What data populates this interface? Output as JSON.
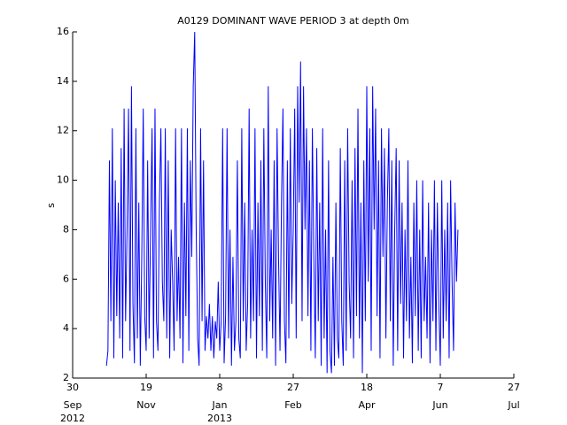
{
  "chart_data": {
    "type": "line",
    "title": "A0129 DOMINANT WAVE PERIOD 3 at depth 0m",
    "ylabel": "s",
    "color": "#0000ff",
    "ylim": [
      2,
      16
    ],
    "yticks": [
      2,
      4,
      6,
      8,
      10,
      12,
      14,
      16
    ],
    "xlim": [
      "2012-09-30",
      "2013-07-27"
    ],
    "xticks": [
      {
        "value": "2012-09-30",
        "label": "30"
      },
      {
        "value": "2012-11-19",
        "label": "19"
      },
      {
        "value": "2013-01-08",
        "label": "8"
      },
      {
        "value": "2013-02-27",
        "label": "27"
      },
      {
        "value": "2013-04-18",
        "label": "18"
      },
      {
        "value": "2013-06-07",
        "label": "7"
      },
      {
        "value": "2013-07-27",
        "label": "27"
      }
    ],
    "xtick_months": [
      "Sep",
      "Nov",
      "Jan",
      "Feb",
      "Apr",
      "Jun",
      "Jul"
    ],
    "xtick_years": [
      "2012",
      null,
      "2013",
      null,
      null,
      null,
      null
    ],
    "x": [
      "2012-10-23",
      "2012-10-24",
      "2012-10-25",
      "2012-10-26",
      "2012-10-27",
      "2012-10-28",
      "2012-10-29",
      "2012-10-30",
      "2012-10-31",
      "2012-11-01",
      "2012-11-02",
      "2012-11-03",
      "2012-11-04",
      "2012-11-05",
      "2012-11-06",
      "2012-11-07",
      "2012-11-08",
      "2012-11-09",
      "2012-11-10",
      "2012-11-11",
      "2012-11-12",
      "2012-11-13",
      "2012-11-14",
      "2012-11-15",
      "2012-11-16",
      "2012-11-17",
      "2012-11-18",
      "2012-11-19",
      "2012-11-20",
      "2012-11-21",
      "2012-11-22",
      "2012-11-23",
      "2012-11-24",
      "2012-11-25",
      "2012-11-26",
      "2012-11-27",
      "2012-11-28",
      "2012-11-29",
      "2012-11-30",
      "2012-12-01",
      "2012-12-02",
      "2012-12-03",
      "2012-12-04",
      "2012-12-05",
      "2012-12-06",
      "2012-12-07",
      "2012-12-08",
      "2012-12-09",
      "2012-12-10",
      "2012-12-11",
      "2012-12-12",
      "2012-12-13",
      "2012-12-14",
      "2012-12-15",
      "2012-12-16",
      "2012-12-17",
      "2012-12-18",
      "2012-12-19",
      "2012-12-20",
      "2012-12-21",
      "2012-12-22",
      "2012-12-23",
      "2012-12-24",
      "2012-12-25",
      "2012-12-26",
      "2012-12-27",
      "2012-12-28",
      "2012-12-29",
      "2012-12-30",
      "2012-12-31",
      "2013-01-01",
      "2013-01-02",
      "2013-01-03",
      "2013-01-04",
      "2013-01-05",
      "2013-01-06",
      "2013-01-07",
      "2013-01-08",
      "2013-01-09",
      "2013-01-10",
      "2013-01-11",
      "2013-01-12",
      "2013-01-13",
      "2013-01-14",
      "2013-01-15",
      "2013-01-16",
      "2013-01-17",
      "2013-01-18",
      "2013-01-19",
      "2013-01-20",
      "2013-01-21",
      "2013-01-22",
      "2013-01-23",
      "2013-01-24",
      "2013-01-25",
      "2013-01-26",
      "2013-01-27",
      "2013-01-28",
      "2013-01-29",
      "2013-01-30",
      "2013-01-31",
      "2013-02-01",
      "2013-02-02",
      "2013-02-03",
      "2013-02-04",
      "2013-02-05",
      "2013-02-06",
      "2013-02-07",
      "2013-02-08",
      "2013-02-09",
      "2013-02-10",
      "2013-02-11",
      "2013-02-12",
      "2013-02-13",
      "2013-02-14",
      "2013-02-15",
      "2013-02-16",
      "2013-02-17",
      "2013-02-18",
      "2013-02-19",
      "2013-02-20",
      "2013-02-21",
      "2013-02-22",
      "2013-02-23",
      "2013-02-24",
      "2013-02-25",
      "2013-02-26",
      "2013-02-27",
      "2013-02-28",
      "2013-03-01",
      "2013-03-02",
      "2013-03-03",
      "2013-03-04",
      "2013-03-05",
      "2013-03-06",
      "2013-03-07",
      "2013-03-08",
      "2013-03-09",
      "2013-03-10",
      "2013-03-11",
      "2013-03-12",
      "2013-03-13",
      "2013-03-14",
      "2013-03-15",
      "2013-03-16",
      "2013-03-17",
      "2013-03-18",
      "2013-03-19",
      "2013-03-20",
      "2013-03-21",
      "2013-03-22",
      "2013-03-23",
      "2013-03-24",
      "2013-03-25",
      "2013-03-26",
      "2013-03-27",
      "2013-03-28",
      "2013-03-29",
      "2013-03-30",
      "2013-03-31",
      "2013-04-01",
      "2013-04-02",
      "2013-04-03",
      "2013-04-04",
      "2013-04-05",
      "2013-04-06",
      "2013-04-07",
      "2013-04-08",
      "2013-04-09",
      "2013-04-10",
      "2013-04-11",
      "2013-04-12",
      "2013-04-13",
      "2013-04-14",
      "2013-04-15",
      "2013-04-16",
      "2013-04-17",
      "2013-04-18",
      "2013-04-19",
      "2013-04-20",
      "2013-04-21",
      "2013-04-22",
      "2013-04-23",
      "2013-04-24",
      "2013-04-25",
      "2013-04-26",
      "2013-04-27",
      "2013-04-28",
      "2013-04-29",
      "2013-04-30",
      "2013-05-01",
      "2013-05-02",
      "2013-05-03",
      "2013-05-04",
      "2013-05-05",
      "2013-05-06",
      "2013-05-07",
      "2013-05-08",
      "2013-05-09",
      "2013-05-10",
      "2013-05-11",
      "2013-05-12",
      "2013-05-13",
      "2013-05-14",
      "2013-05-15",
      "2013-05-16",
      "2013-05-17",
      "2013-05-18",
      "2013-05-19",
      "2013-05-20",
      "2013-05-21",
      "2013-05-22",
      "2013-05-23",
      "2013-05-24",
      "2013-05-25",
      "2013-05-26",
      "2013-05-27",
      "2013-05-28",
      "2013-05-29",
      "2013-05-30",
      "2013-05-31",
      "2013-06-01",
      "2013-06-02",
      "2013-06-03",
      "2013-06-04",
      "2013-06-05",
      "2013-06-06",
      "2013-06-07",
      "2013-06-08",
      "2013-06-09",
      "2013-06-10",
      "2013-06-11",
      "2013-06-12",
      "2013-06-13",
      "2013-06-14",
      "2013-06-15",
      "2013-06-16",
      "2013-06-17",
      "2013-06-18",
      "2013-06-19"
    ],
    "values": [
      2.5,
      3.1,
      10.8,
      4.3,
      12.1,
      2.8,
      10,
      4.5,
      9.1,
      3.6,
      11.3,
      2.8,
      12.9,
      4.3,
      8.0,
      12.9,
      3.1,
      13.8,
      5.0,
      2.6,
      12.1,
      3.6,
      9.1,
      2.5,
      6.9,
      12.9,
      4.5,
      3.1,
      10.8,
      3.6,
      8.0,
      12.1,
      2.8,
      12.9,
      4.3,
      3.1,
      9.1,
      12.1,
      5.9,
      4.3,
      12.1,
      3.6,
      10.8,
      2.8,
      8.0,
      5.9,
      3.1,
      12.1,
      4.3,
      6.9,
      3.6,
      12.1,
      2.6,
      9.1,
      4.5,
      12.1,
      3.1,
      10.8,
      6.9,
      13.8,
      16,
      8.0,
      3.6,
      2.5,
      12.1,
      4.3,
      10.8,
      3.1,
      4.5,
      3.6,
      5.0,
      3.1,
      4.5,
      2.8,
      4.3,
      3.6,
      5.9,
      3.1,
      4.3,
      12.1,
      2.6,
      4.5,
      12.1,
      3.6,
      8.0,
      2.5,
      6.9,
      3.1,
      4.3,
      10.8,
      3.6,
      2.8,
      12.1,
      4.3,
      9.1,
      3.1,
      5.0,
      12.9,
      3.6,
      8.0,
      4.3,
      12.1,
      2.8,
      9.1,
      4.5,
      10.8,
      3.1,
      12.1,
      5.9,
      2.8,
      13.8,
      4.3,
      8.0,
      3.6,
      10.8,
      2.5,
      12.1,
      6.9,
      3.1,
      9.1,
      12.9,
      4.3,
      2.6,
      10.8,
      3.6,
      12.1,
      5.0,
      8.0,
      12.9,
      3.6,
      13.8,
      9.1,
      14.8,
      4.3,
      13.8,
      8.0,
      12.1,
      4.5,
      10.8,
      3.1,
      12.1,
      6.9,
      2.8,
      11.3,
      4.3,
      9.1,
      2.5,
      12.1,
      3.6,
      8.0,
      2.2,
      10.8,
      3.1,
      2.2,
      6.9,
      2.5,
      9.1,
      3.6,
      2.8,
      11.3,
      4.3,
      2.5,
      10.8,
      3.1,
      12.1,
      5.9,
      3.6,
      10,
      2.8,
      11.3,
      4.5,
      12.9,
      3.6,
      9.1,
      2.2,
      10.8,
      4.3,
      13.8,
      5.9,
      12.1,
      3.1,
      13.8,
      8.0,
      12.9,
      4.5,
      10.8,
      2.8,
      12.1,
      6.9,
      11.3,
      3.6,
      9.1,
      12.1,
      4.3,
      10.8,
      2.5,
      8.0,
      11.3,
      3.1,
      10.8,
      5.0,
      9.1,
      2.8,
      8.0,
      4.3,
      10.8,
      3.6,
      6.9,
      2.6,
      9.1,
      4.5,
      10,
      3.1,
      8.0,
      2.8,
      10,
      4.3,
      6.9,
      3.6,
      9.1,
      2.6,
      8.0,
      4.3,
      10,
      3.1,
      9.1,
      5.0,
      2.5,
      10,
      3.6,
      8.0,
      4.3,
      9.1,
      2.8,
      10,
      5.9,
      3.1,
      9.1,
      5.9,
      8.0
    ]
  }
}
